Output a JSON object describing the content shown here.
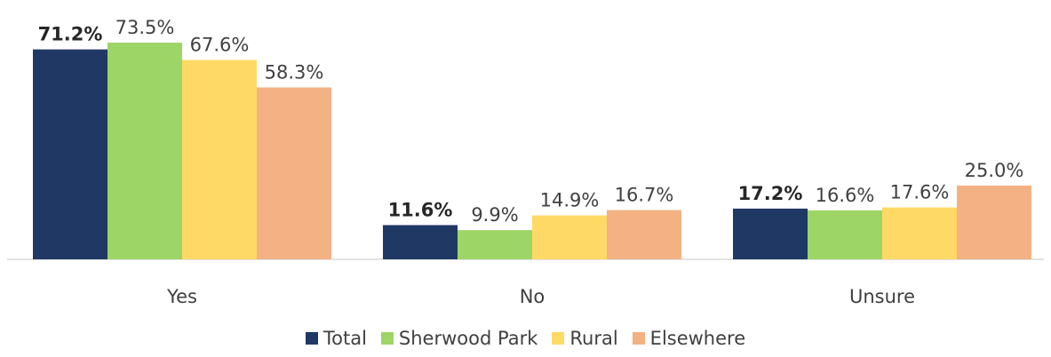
{
  "chart_data": {
    "type": "bar",
    "title": "",
    "xlabel": "",
    "ylabel": "",
    "ylim": [
      0,
      80
    ],
    "grid": false,
    "legend_position": "bottom",
    "categories": [
      "Yes",
      "No",
      "Unsure"
    ],
    "series": [
      {
        "name": "Total",
        "color": "#203864",
        "values": [
          71.2,
          11.6,
          17.2
        ],
        "labels": [
          "71.2%",
          "11.6%",
          "17.2%"
        ],
        "bold_labels": true
      },
      {
        "name": "Sherwood Park",
        "color": "#9DD566",
        "values": [
          73.5,
          9.9,
          16.6
        ],
        "labels": [
          "73.5%",
          "9.9%",
          "16.6%"
        ],
        "bold_labels": false
      },
      {
        "name": "Rural",
        "color": "#FFD966",
        "values": [
          67.6,
          14.9,
          17.6
        ],
        "labels": [
          "67.6%",
          "14.9%",
          "17.6%"
        ],
        "bold_labels": false
      },
      {
        "name": "Elsewhere",
        "color": "#F4B183",
        "values": [
          58.3,
          16.7,
          25.0
        ],
        "labels": [
          "58.3%",
          "16.7%",
          "25.0%"
        ],
        "bold_labels": false
      }
    ]
  }
}
